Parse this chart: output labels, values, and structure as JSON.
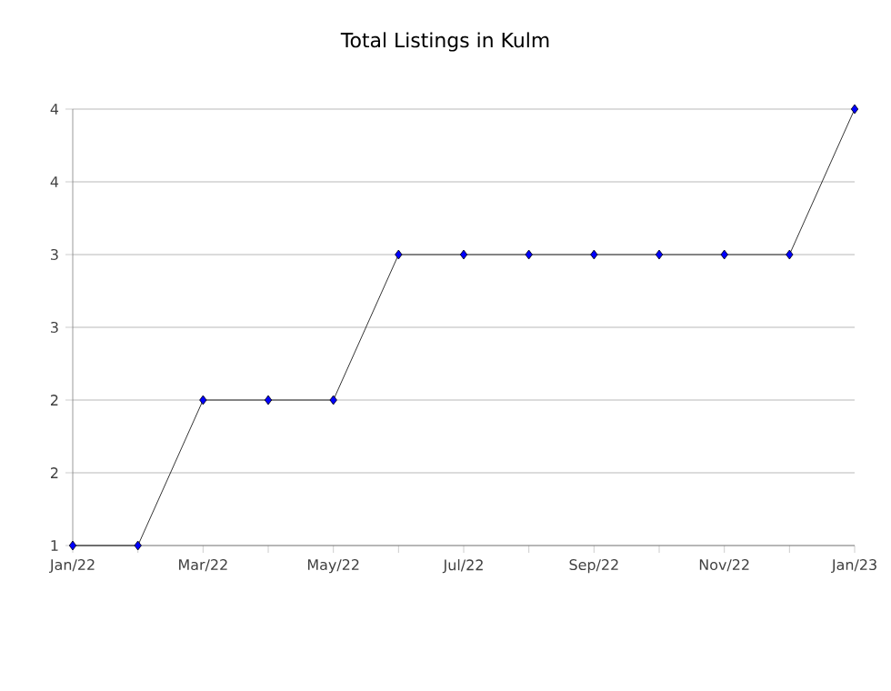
{
  "chart_data": {
    "type": "line",
    "title": "Total Listings in Kulm",
    "categories": [
      "Jan/22",
      null,
      "Mar/22",
      null,
      "May/22",
      null,
      "Jul/22",
      null,
      "Sep/22",
      null,
      "Nov/22",
      null,
      "Jan/23"
    ],
    "series": [
      {
        "color": "#0000ff",
        "values": [
          1,
          1,
          2,
          2,
          2,
          3,
          3,
          3,
          3,
          3,
          3,
          3,
          4
        ]
      }
    ],
    "ylim": [
      1,
      4
    ],
    "yticks": [
      1,
      {
        "value": 1.5,
        "label": "2"
      },
      2,
      {
        "value": 2.5,
        "label": "3"
      },
      3,
      {
        "value": 3.5,
        "label": "4"
      },
      4
    ],
    "grid": "y",
    "marker": "diamond",
    "line_style": "solid"
  }
}
